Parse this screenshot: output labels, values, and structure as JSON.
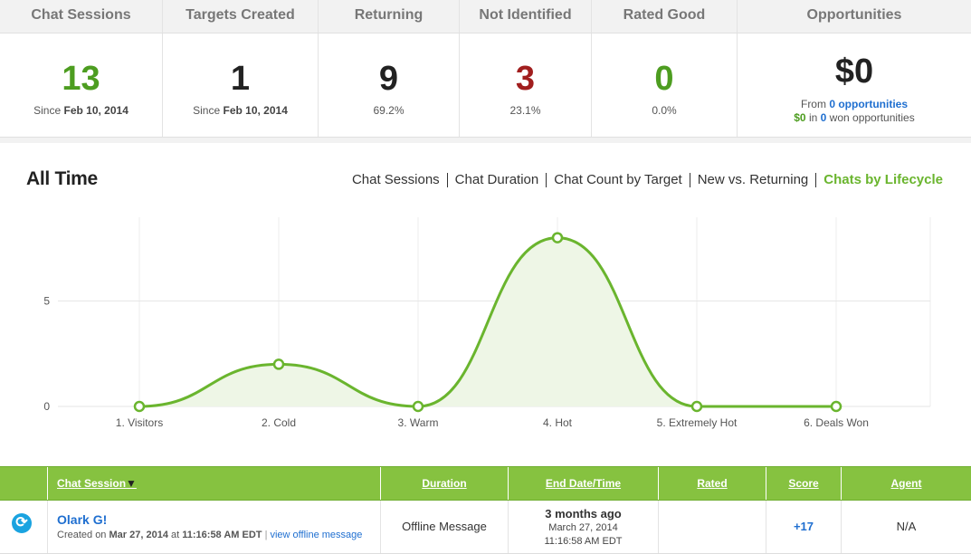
{
  "stats": [
    {
      "label": "Chat Sessions",
      "value": "13",
      "sub_prefix": "Since",
      "sub_date": "Feb 10, 2014"
    },
    {
      "label": "Targets Created",
      "value": "1",
      "sub_prefix": "Since",
      "sub_date": "Feb 10, 2014"
    },
    {
      "label": "Returning",
      "value": "9",
      "sub": "69.2%"
    },
    {
      "label": "Not Identified",
      "value": "3",
      "sub": "23.1%"
    },
    {
      "label": "Rated Good",
      "value": "0",
      "sub": "0.0%"
    }
  ],
  "opportunities": {
    "label": "Opportunities",
    "value": "$0",
    "from_text": "From",
    "count_link": "0 opportunities",
    "won_amount": "$0",
    "won_in": "in",
    "won_count": "0",
    "won_text": "won opportunities"
  },
  "chart_section": {
    "title": "All Time",
    "tabs": [
      "Chat Sessions",
      "Chat Duration",
      "Chat Count by Target",
      "New vs. Returning",
      "Chats by Lifecycle"
    ],
    "active_tab": "Chats by Lifecycle"
  },
  "chart_data": {
    "type": "area",
    "categories": [
      "1. Visitors",
      "2. Cold",
      "3. Warm",
      "4. Hot",
      "5. Extremely Hot",
      "6. Deals Won"
    ],
    "values": [
      0,
      2,
      0,
      8,
      0,
      0
    ],
    "yticks": [
      0,
      5
    ],
    "ylim": [
      0,
      10
    ],
    "grid": true,
    "color": "#6ab52e",
    "fill": "#eef6e6"
  },
  "table": {
    "headers": [
      "Chat Session",
      "Duration",
      "End Date/Time",
      "Rated",
      "Score",
      "Agent"
    ],
    "sort_indicator": "▼",
    "row": {
      "name": "Olark G!",
      "created_prefix": "Created on",
      "created_date": "Mar 27, 2014",
      "created_at": "at",
      "created_time": "11:16:58 AM EDT",
      "separator": "|",
      "offline_link": "view offline message",
      "duration": "Offline Message",
      "end_relative": "3 months ago",
      "end_date": "March 27, 2014",
      "end_time": "11:16:58 AM EDT",
      "rated": "",
      "score": "+17",
      "agent": "N/A"
    }
  }
}
